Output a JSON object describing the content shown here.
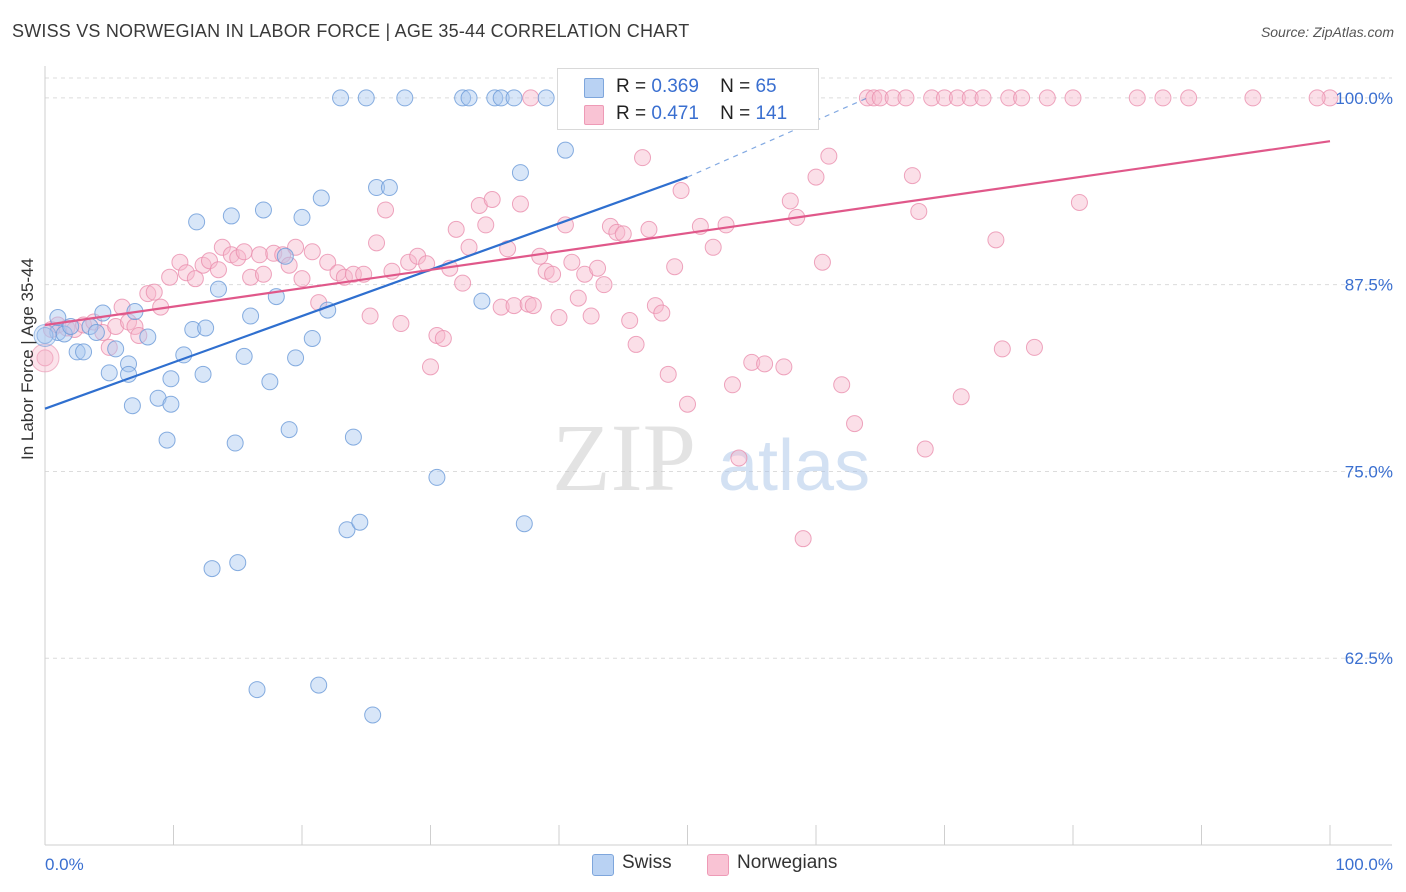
{
  "title": "SWISS VS NORWEGIAN IN LABOR FORCE | AGE 35-44 CORRELATION CHART",
  "source": "Source: ZipAtlas.com",
  "watermark": {
    "zip": "ZIP",
    "atlas": "atlas"
  },
  "legend": {
    "r_label": "R =",
    "n_label": "N =",
    "swiss": {
      "r": "0.369",
      "n": "65"
    },
    "norwegians": {
      "r": "0.471",
      "n": "141"
    }
  },
  "colors": {
    "swiss_fill": "#a9c8f0",
    "swiss_stroke": "#6a9ad8",
    "swiss_line": "#2f6fcf",
    "norw_fill": "#f7b9cd",
    "norw_stroke": "#ea8fae",
    "norw_line": "#e0588a",
    "tick_text": "#3a6fd0",
    "grid": "#dcdcdc"
  },
  "chart_data": {
    "type": "scatter",
    "title": "SWISS VS NORWEGIAN IN LABOR FORCE | AGE 35-44 CORRELATION CHART",
    "xlabel": "",
    "ylabel": "In Labor Force | Age 35-44",
    "xlim": [
      0,
      100
    ],
    "ylim": [
      50,
      102
    ],
    "x_tick_labels": [
      "0.0%",
      "100.0%"
    ],
    "y_ticks": [
      {
        "value": 100,
        "label": "100.0%"
      },
      {
        "value": 87.5,
        "label": "87.5%"
      },
      {
        "value": 75,
        "label": "75.0%"
      },
      {
        "value": 62.5,
        "label": "62.5%"
      }
    ],
    "grid": true,
    "legend_position": "top-center",
    "series": [
      {
        "name": "Swiss",
        "r": 0.369,
        "n": 65,
        "trend": {
          "x0": 0,
          "y0": 79.2,
          "x1": 50,
          "y1": 94.7,
          "dash_to_x": 64,
          "dash_to_y": 100
        },
        "points": [
          [
            1,
            84.3
          ],
          [
            1,
            85.3
          ],
          [
            1.5,
            84.2
          ],
          [
            2,
            84.7
          ],
          [
            2.5,
            83
          ],
          [
            3,
            83
          ],
          [
            3.5,
            84.7
          ],
          [
            4,
            84.3
          ],
          [
            4.5,
            85.6
          ],
          [
            5.5,
            83.2
          ],
          [
            5,
            81.6
          ],
          [
            6.5,
            82.2
          ],
          [
            6.5,
            81.5
          ],
          [
            7,
            85.7
          ],
          [
            8,
            84
          ],
          [
            6.8,
            79.4
          ],
          [
            8.8,
            79.9
          ],
          [
            9.8,
            79.5
          ],
          [
            9.5,
            77.1
          ],
          [
            9.8,
            81.2
          ],
          [
            10.8,
            82.8
          ],
          [
            11.5,
            84.5
          ],
          [
            12.3,
            81.5
          ],
          [
            12.5,
            84.6
          ],
          [
            11.8,
            91.7
          ],
          [
            13.5,
            87.2
          ],
          [
            14.5,
            92.1
          ],
          [
            14.8,
            76.9
          ],
          [
            15.5,
            82.7
          ],
          [
            16,
            85.4
          ],
          [
            17,
            92.5
          ],
          [
            17.5,
            81
          ],
          [
            18,
            86.7
          ],
          [
            18.7,
            89.4
          ],
          [
            19,
            77.8
          ],
          [
            19.5,
            82.6
          ],
          [
            20,
            92
          ],
          [
            20.8,
            83.9
          ],
          [
            21.5,
            93.3
          ],
          [
            22,
            85.8
          ],
          [
            23,
            100
          ],
          [
            23.5,
            71.1
          ],
          [
            24,
            77.3
          ],
          [
            24.5,
            71.6
          ],
          [
            25,
            100
          ],
          [
            25.8,
            94
          ],
          [
            26.8,
            94
          ],
          [
            28,
            100
          ],
          [
            30.5,
            74.6
          ],
          [
            32.5,
            100
          ],
          [
            33,
            100
          ],
          [
            34,
            86.4
          ],
          [
            35,
            100
          ],
          [
            35.5,
            100
          ],
          [
            36.5,
            100
          ],
          [
            37,
            95
          ],
          [
            37.3,
            71.5
          ],
          [
            39,
            100
          ],
          [
            15,
            68.9
          ],
          [
            13,
            68.5
          ],
          [
            16.5,
            60.4
          ],
          [
            21.3,
            60.7
          ],
          [
            25.5,
            58.7
          ],
          [
            0,
            84.1
          ],
          [
            40.5,
            96.5
          ]
        ]
      },
      {
        "name": "Norwegians",
        "r": 0.471,
        "n": 141,
        "trend": {
          "x0": 0,
          "y0": 84.8,
          "x1": 100,
          "y1": 97.1
        },
        "points": [
          [
            0,
            82.6
          ],
          [
            0.5,
            84.5
          ],
          [
            1,
            84.8
          ],
          [
            1.7,
            84.6
          ],
          [
            2.3,
            84.5
          ],
          [
            3,
            84.8
          ],
          [
            3.8,
            85
          ],
          [
            4.5,
            84.3
          ],
          [
            5,
            83.3
          ],
          [
            5.5,
            84.7
          ],
          [
            6,
            86
          ],
          [
            6.5,
            85
          ],
          [
            7,
            84.7
          ],
          [
            7.3,
            84.1
          ],
          [
            8,
            86.9
          ],
          [
            8.5,
            87
          ],
          [
            9,
            86
          ],
          [
            9.7,
            88
          ],
          [
            10.5,
            89
          ],
          [
            11,
            88.3
          ],
          [
            11.7,
            87.9
          ],
          [
            12.3,
            88.8
          ],
          [
            12.8,
            89.1
          ],
          [
            13.5,
            88.5
          ],
          [
            13.8,
            90
          ],
          [
            14.5,
            89.5
          ],
          [
            15,
            89.3
          ],
          [
            15.5,
            89.7
          ],
          [
            16,
            88
          ],
          [
            16.7,
            89.5
          ],
          [
            17,
            88.2
          ],
          [
            17.8,
            89.6
          ],
          [
            18.5,
            89.5
          ],
          [
            19,
            88.8
          ],
          [
            19.5,
            90
          ],
          [
            20,
            87.9
          ],
          [
            20.8,
            89.7
          ],
          [
            21.3,
            86.3
          ],
          [
            22,
            89
          ],
          [
            22.8,
            88.3
          ],
          [
            23.3,
            88
          ],
          [
            24,
            88.2
          ],
          [
            24.8,
            88.2
          ],
          [
            25.3,
            85.4
          ],
          [
            25.8,
            90.3
          ],
          [
            26.5,
            92.5
          ],
          [
            27,
            88.4
          ],
          [
            27.7,
            84.9
          ],
          [
            28.3,
            89
          ],
          [
            29,
            89.4
          ],
          [
            29.7,
            88.9
          ],
          [
            30,
            82
          ],
          [
            30.5,
            84.1
          ],
          [
            31,
            83.9
          ],
          [
            31.5,
            88.6
          ],
          [
            32,
            91.2
          ],
          [
            32.5,
            87.6
          ],
          [
            33,
            90
          ],
          [
            33.8,
            92.8
          ],
          [
            34.3,
            91.5
          ],
          [
            34.8,
            93.2
          ],
          [
            35.5,
            86
          ],
          [
            36,
            89.9
          ],
          [
            36.5,
            86.1
          ],
          [
            37,
            92.9
          ],
          [
            37.6,
            86.2
          ],
          [
            38,
            86.1
          ],
          [
            38.5,
            89.4
          ],
          [
            39,
            88.4
          ],
          [
            39.5,
            88.2
          ],
          [
            40,
            85.3
          ],
          [
            40.5,
            91.5
          ],
          [
            41,
            89
          ],
          [
            41.5,
            86.6
          ],
          [
            42,
            88.2
          ],
          [
            42.5,
            85.4
          ],
          [
            43,
            88.6
          ],
          [
            43.5,
            87.5
          ],
          [
            44,
            91.4
          ],
          [
            44.5,
            91
          ],
          [
            45,
            90.9
          ],
          [
            45.5,
            85.1
          ],
          [
            46,
            83.5
          ],
          [
            46.5,
            96
          ],
          [
            47,
            91.2
          ],
          [
            47.5,
            86.1
          ],
          [
            48,
            85.6
          ],
          [
            48.5,
            81.5
          ],
          [
            49,
            88.7
          ],
          [
            49.5,
            93.8
          ],
          [
            50,
            79.5
          ],
          [
            51,
            91.4
          ],
          [
            52,
            90
          ],
          [
            53,
            91.5
          ],
          [
            53.5,
            80.8
          ],
          [
            54,
            75.9
          ],
          [
            55,
            82.3
          ],
          [
            56,
            82.2
          ],
          [
            57,
            100
          ],
          [
            57.5,
            82
          ],
          [
            58,
            93.1
          ],
          [
            58.5,
            92
          ],
          [
            59,
            70.5
          ],
          [
            60,
            94.7
          ],
          [
            60.5,
            89
          ],
          [
            61,
            96.1
          ],
          [
            62,
            80.8
          ],
          [
            63,
            78.2
          ],
          [
            64,
            100
          ],
          [
            64.5,
            100
          ],
          [
            65,
            100
          ],
          [
            66,
            100
          ],
          [
            67,
            100
          ],
          [
            67.5,
            94.8
          ],
          [
            68,
            92.4
          ],
          [
            68.5,
            76.5
          ],
          [
            69,
            100
          ],
          [
            70,
            100
          ],
          [
            71,
            100
          ],
          [
            71.3,
            80
          ],
          [
            72,
            100
          ],
          [
            73,
            100
          ],
          [
            74,
            90.5
          ],
          [
            74.5,
            83.2
          ],
          [
            75,
            100
          ],
          [
            76,
            100
          ],
          [
            77,
            83.3
          ],
          [
            78,
            100
          ],
          [
            80,
            100
          ],
          [
            80.5,
            93
          ],
          [
            85,
            100
          ],
          [
            87,
            100
          ],
          [
            89,
            100
          ],
          [
            94,
            100
          ],
          [
            100,
            100
          ],
          [
            99,
            100
          ],
          [
            37.8,
            100
          ]
        ]
      }
    ]
  }
}
